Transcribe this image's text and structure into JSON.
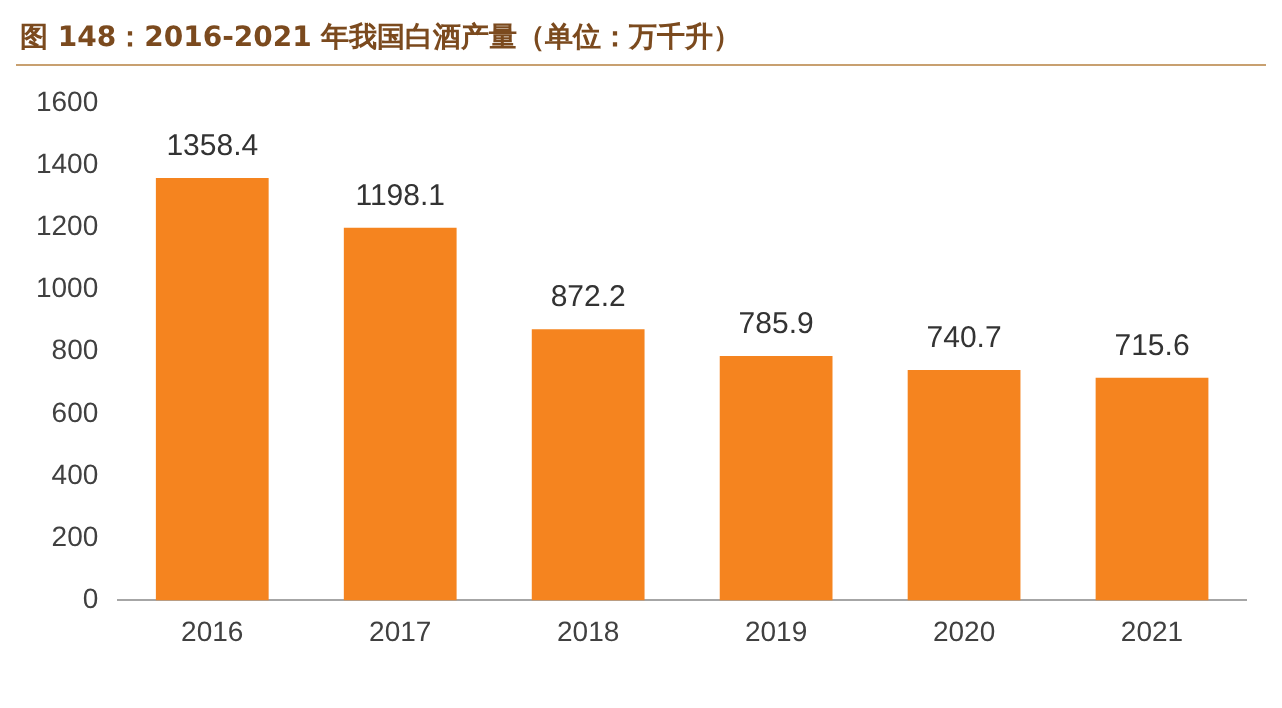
{
  "chart_data": {
    "type": "bar",
    "title": "图 148：2016-2021 年我国白酒产量（单位：万千升）",
    "categories": [
      "2016",
      "2017",
      "2018",
      "2019",
      "2020",
      "2021"
    ],
    "values": [
      1358.4,
      1198.1,
      872.2,
      785.9,
      740.7,
      715.6
    ],
    "color": "#f5841f",
    "ylim": [
      0,
      1600
    ],
    "yticks": [
      0,
      200,
      400,
      600,
      800,
      1000,
      1200,
      1400,
      1600
    ],
    "grid": false,
    "legend": false,
    "data_labels": true
  }
}
